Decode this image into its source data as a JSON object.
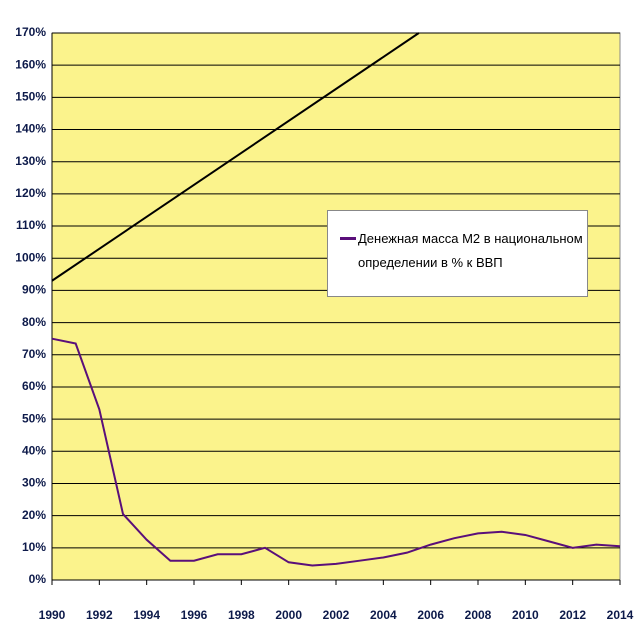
{
  "chart_data": {
    "type": "line",
    "xlim": [
      1990,
      2014
    ],
    "xticks": [
      1990,
      1992,
      1994,
      1996,
      1998,
      2000,
      2002,
      2004,
      2006,
      2008,
      2010,
      2012,
      2014
    ],
    "ylim": [
      0,
      170
    ],
    "yticks": [
      {
        "value": 0,
        "label": "0%"
      },
      {
        "value": 10,
        "label": "10%"
      },
      {
        "value": 20,
        "label": "20%"
      },
      {
        "value": 30,
        "label": "30%"
      },
      {
        "value": 40,
        "label": "40%"
      },
      {
        "value": 50,
        "label": "50%"
      },
      {
        "value": 60,
        "label": "60%"
      },
      {
        "value": 70,
        "label": "70%"
      },
      {
        "value": 80,
        "label": "80%"
      },
      {
        "value": 90,
        "label": "90%"
      },
      {
        "value": 100,
        "label": "100%"
      },
      {
        "value": 110,
        "label": "110%"
      },
      {
        "value": 120,
        "label": "120%"
      },
      {
        "value": 130,
        "label": "130%"
      },
      {
        "value": 140,
        "label": "140%"
      },
      {
        "value": 150,
        "label": "150%"
      },
      {
        "value": 160,
        "label": "160%"
      },
      {
        "value": 170,
        "label": "170%"
      }
    ],
    "grid": true,
    "legend": "right",
    "series": [
      {
        "name": "Денежная масса М2 в национальном определении в % к ВВП",
        "color": "#5a0f7a",
        "x": [
          1990,
          1991,
          1992,
          1993,
          1994,
          1995,
          1996,
          1997,
          1998,
          1999,
          2000,
          2001,
          2002,
          2003,
          2004,
          2005,
          2006,
          2007,
          2008,
          2009,
          2010,
          2011,
          2012,
          2013,
          2014
        ],
        "values": [
          75,
          73.5,
          53,
          20.5,
          12.5,
          6,
          6,
          8,
          8,
          10,
          5.5,
          4.5,
          5,
          6,
          7,
          8.5,
          11,
          13,
          14.5,
          15,
          14,
          12,
          10,
          11,
          10.5
        ]
      },
      {
        "color": "#000000",
        "x": [
          1990,
          2005.5
        ],
        "values": [
          93,
          170
        ]
      }
    ]
  }
}
